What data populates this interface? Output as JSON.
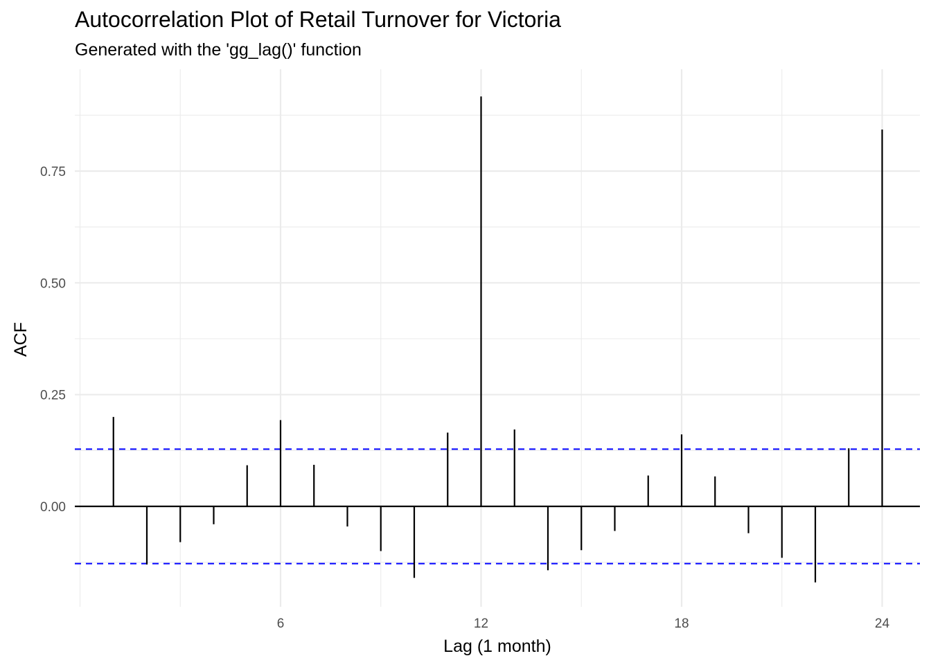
{
  "chart_data": {
    "type": "bar",
    "title": "Autocorrelation Plot of Retail Turnover for Victoria",
    "subtitle": "Generated with the 'gg_lag()' function",
    "xlabel": "Lag (1 month)",
    "ylabel": "ACF",
    "x_ticks": [
      "6",
      "12",
      "18",
      "24"
    ],
    "y_ticks": [
      "0.00",
      "0.25",
      "0.50",
      "0.75"
    ],
    "xlim": [
      0,
      25.2
    ],
    "ylim": [
      -0.2,
      0.93
    ],
    "grid": true,
    "series": [
      {
        "lags": [
          1,
          2,
          3,
          4,
          5,
          6,
          7,
          8,
          9,
          10,
          11,
          12,
          13,
          14,
          15,
          16,
          17,
          18,
          19,
          20,
          21,
          22,
          23,
          24
        ],
        "values": [
          0.2,
          -0.13,
          -0.08,
          -0.04,
          0.092,
          0.193,
          0.093,
          -0.045,
          -0.1,
          -0.16,
          0.165,
          0.917,
          0.172,
          -0.143,
          -0.098,
          -0.055,
          0.069,
          0.161,
          0.067,
          -0.06,
          -0.115,
          -0.17,
          0.13,
          0.843
        ]
      }
    ],
    "confidence_bound": 0.128,
    "colors": {
      "bars": "#000000",
      "confidence": "#0000ff",
      "grid": "#ebebeb",
      "zero_line": "#000000"
    }
  }
}
